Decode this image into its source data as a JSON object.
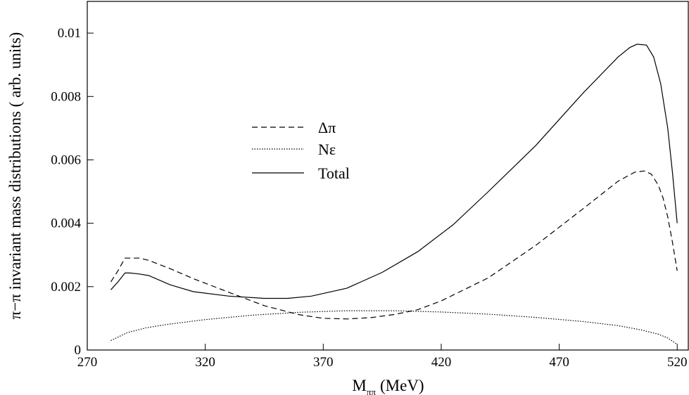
{
  "chart_data": {
    "type": "line",
    "xlabel": "M",
    "xlabel_subscript": "ππ",
    "xlabel_unit": "(MeV)",
    "ylabel": "π−π invariant mass distributions ( arb. units)",
    "xlim": [
      270,
      525
    ],
    "ylim": [
      0,
      0.011
    ],
    "x_ticks": [
      270,
      320,
      370,
      420,
      470,
      520
    ],
    "x_tick_labels": [
      "270",
      "320",
      "370",
      "420",
      "470",
      "520"
    ],
    "y_ticks": [
      0,
      0.002,
      0.004,
      0.006,
      0.008,
      0.01
    ],
    "y_tick_labels": [
      "0",
      "0.002",
      "0.004",
      "0.006",
      "0.008",
      "0.01"
    ],
    "grid": false,
    "legend_position": "upper-left-center",
    "series": [
      {
        "name": "Δπ",
        "style": "dashed",
        "x": [
          280,
          283,
          286,
          288,
          292,
          296,
          305,
          315,
          330,
          345,
          360,
          370,
          380,
          390,
          400,
          410,
          420,
          440,
          460,
          480,
          495,
          502,
          506,
          509,
          512,
          514,
          516,
          518,
          520
        ],
        "y": [
          0.00215,
          0.0025,
          0.0029,
          0.0029,
          0.0029,
          0.00283,
          0.00257,
          0.00225,
          0.00182,
          0.0014,
          0.00111,
          0.001,
          0.00098,
          0.00102,
          0.00112,
          0.00127,
          0.00155,
          0.00228,
          0.0033,
          0.00445,
          0.00533,
          0.00561,
          0.00565,
          0.00555,
          0.0052,
          0.0048,
          0.0042,
          0.0034,
          0.0025
        ]
      },
      {
        "name": "Nε",
        "style": "dotted",
        "x": [
          280,
          287,
          295,
          305,
          320,
          340,
          360,
          380,
          400,
          420,
          440,
          460,
          480,
          495,
          505,
          512,
          516,
          520
        ],
        "y": [
          0.0003,
          0.00055,
          0.0007,
          0.00082,
          0.00096,
          0.0011,
          0.00119,
          0.00124,
          0.00124,
          0.0012,
          0.00113,
          0.00103,
          0.0009,
          0.00077,
          0.00063,
          0.0005,
          0.00038,
          0.00018
        ]
      },
      {
        "name": "Total",
        "style": "solid",
        "x": [
          280,
          283,
          286,
          288,
          292,
          296,
          305,
          315,
          330,
          345,
          355,
          365,
          380,
          395,
          410,
          425,
          440,
          460,
          480,
          495,
          500,
          503,
          507,
          510,
          513,
          516,
          518,
          520
        ],
        "y": [
          0.0019,
          0.00215,
          0.00243,
          0.00243,
          0.0024,
          0.00235,
          0.00206,
          0.00184,
          0.0017,
          0.00163,
          0.00163,
          0.0017,
          0.00195,
          0.00245,
          0.0031,
          0.00395,
          0.005,
          0.00645,
          0.0081,
          0.00925,
          0.00955,
          0.00965,
          0.00962,
          0.00925,
          0.0084,
          0.007,
          0.0056,
          0.004
        ]
      }
    ]
  }
}
